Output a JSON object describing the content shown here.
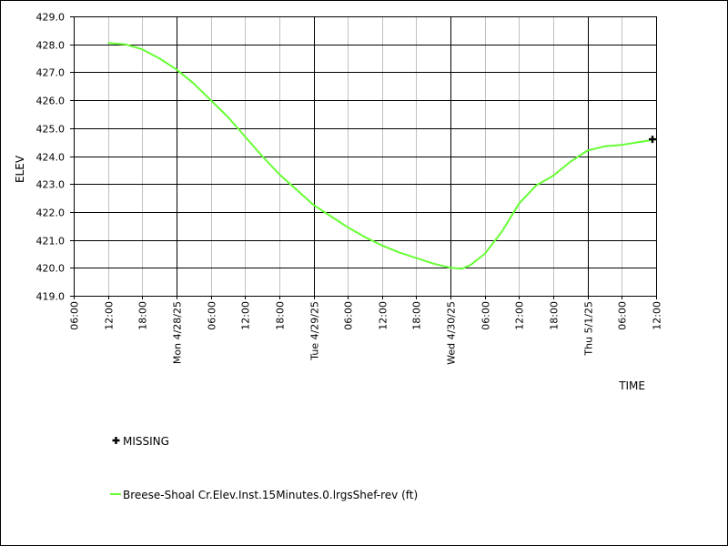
{
  "chart_data": {
    "type": "line",
    "xlabel": "TIME",
    "ylabel": "ELEV",
    "ylim": [
      419.0,
      429.0
    ],
    "y_ticks": [
      419.0,
      420.0,
      421.0,
      422.0,
      423.0,
      424.0,
      425.0,
      426.0,
      427.0,
      428.0,
      429.0
    ],
    "y_tick_labels": [
      "419.0",
      "420.0",
      "421.0",
      "422.0",
      "423.0",
      "424.0",
      "425.0",
      "426.0",
      "427.0",
      "428.0",
      "429.0"
    ],
    "xlim_hours": [
      -18,
      66
    ],
    "x_ticks": [
      {
        "t": -18,
        "label": "06:00",
        "major": false
      },
      {
        "t": -12,
        "label": "12:00",
        "major": false
      },
      {
        "t": -6,
        "label": "18:00",
        "major": false
      },
      {
        "t": 0,
        "label": "Mon 4/28/25",
        "major": true
      },
      {
        "t": 6,
        "label": "06:00",
        "major": false
      },
      {
        "t": 12,
        "label": "12:00",
        "major": false
      },
      {
        "t": 18,
        "label": "18:00",
        "major": false
      },
      {
        "t": 24,
        "label": "Tue 4/29/25",
        "major": true
      },
      {
        "t": 30,
        "label": "06:00",
        "major": false
      },
      {
        "t": 36,
        "label": "12:00",
        "major": false
      },
      {
        "t": 42,
        "label": "18:00",
        "major": false
      },
      {
        "t": 48,
        "label": "Wed 4/30/25",
        "major": true
      },
      {
        "t": 54,
        "label": "06:00",
        "major": false
      },
      {
        "t": 60,
        "label": "12:00",
        "major": false
      },
      {
        "t": 66,
        "label": "18:00",
        "major": false
      },
      {
        "t": 72,
        "label": "Thu 5/1/25",
        "major": true
      },
      {
        "t": 78,
        "label": "06:00",
        "major": false
      },
      {
        "t": 84,
        "label": "12:00",
        "major": false
      }
    ],
    "series": [
      {
        "name": "Breese-Shoal Cr.Elev.Inst.15Minutes.0.lrgsShef-rev (ft)",
        "color": "#66ff33",
        "points": [
          [
            -12,
            428.05
          ],
          [
            -9,
            428.0
          ],
          [
            -6,
            427.82
          ],
          [
            -3,
            427.5
          ],
          [
            0,
            427.1
          ],
          [
            3,
            426.6
          ],
          [
            6,
            426.0
          ],
          [
            9,
            425.4
          ],
          [
            12,
            424.7
          ],
          [
            15,
            424.0
          ],
          [
            18,
            423.35
          ],
          [
            21,
            422.8
          ],
          [
            24,
            422.25
          ],
          [
            27,
            421.85
          ],
          [
            30,
            421.45
          ],
          [
            33,
            421.1
          ],
          [
            36,
            420.8
          ],
          [
            39,
            420.55
          ],
          [
            42,
            420.35
          ],
          [
            45,
            420.15
          ],
          [
            48,
            420.0
          ],
          [
            50,
            419.97
          ],
          [
            51.5,
            420.1
          ],
          [
            54,
            420.5
          ],
          [
            57,
            421.3
          ],
          [
            60,
            422.3
          ],
          [
            63,
            422.95
          ],
          [
            66,
            423.3
          ],
          [
            69,
            423.8
          ],
          [
            72,
            424.2
          ],
          [
            75,
            424.35
          ],
          [
            78,
            424.4
          ],
          [
            81,
            424.5
          ],
          [
            84,
            424.6
          ]
        ]
      }
    ],
    "missing": {
      "name": "MISSING",
      "points": [
        [
          84,
          424.6
        ]
      ]
    }
  }
}
